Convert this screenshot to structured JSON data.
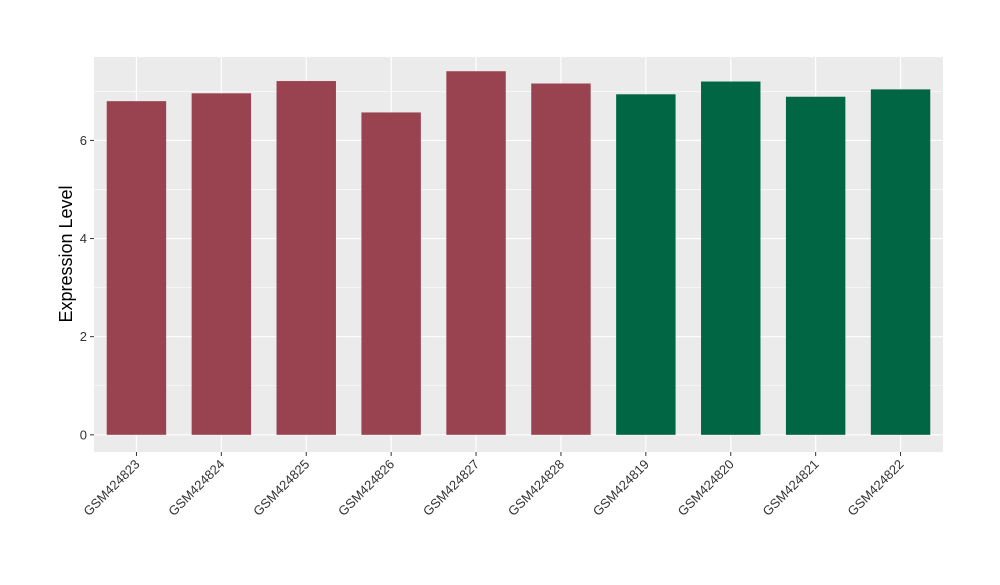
{
  "chart_data": {
    "type": "bar",
    "title": "",
    "xlabel": "",
    "ylabel": "Expression Level",
    "ylim": [
      -0.35,
      7.7
    ],
    "yticks": [
      0,
      2,
      4,
      6
    ],
    "grid": true,
    "categories": [
      "GSM424823",
      "GSM424824",
      "GSM424825",
      "GSM424826",
      "GSM424827",
      "GSM424828",
      "GSM424819",
      "GSM424820",
      "GSM424821",
      "GSM424822"
    ],
    "values": [
      6.8,
      6.96,
      7.21,
      6.57,
      7.41,
      7.16,
      6.94,
      7.2,
      6.89,
      7.04
    ],
    "colors": [
      "#9a4350",
      "#9a4350",
      "#9a4350",
      "#9a4350",
      "#9a4350",
      "#9a4350",
      "#006644",
      "#006644",
      "#006644",
      "#006644"
    ],
    "panel_background": "#ebebeb",
    "grid_color": "#ffffff"
  }
}
